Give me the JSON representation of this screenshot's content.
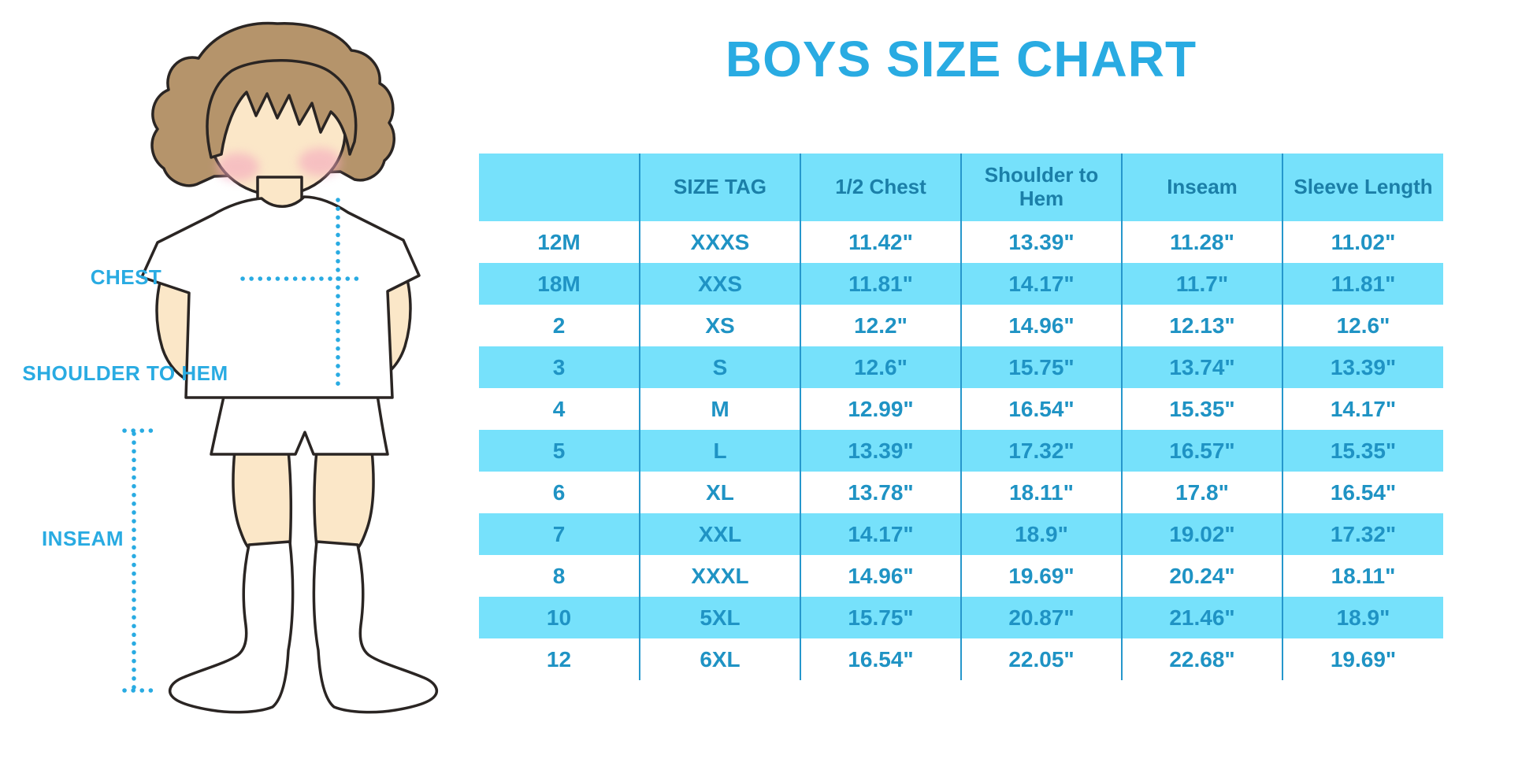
{
  "title": "BOYS SIZE CHART",
  "illustration": {
    "labels": {
      "chest": "CHEST",
      "shoulder_to_hem": "SHOULDER TO HEM",
      "inseam": "INSEAM"
    }
  },
  "chart_data": {
    "type": "table",
    "title": "BOYS SIZE CHART",
    "columns": [
      "",
      "SIZE TAG",
      "1/2 Chest",
      "Shoulder to Hem",
      "Inseam",
      "Sleeve Length"
    ],
    "rows": [
      [
        "12M",
        "XXXS",
        "11.42\"",
        "13.39\"",
        "11.28\"",
        "11.02\""
      ],
      [
        "18M",
        "XXS",
        "11.81\"",
        "14.17\"",
        "11.7\"",
        "11.81\""
      ],
      [
        "2",
        "XS",
        "12.2\"",
        "14.96\"",
        "12.13\"",
        "12.6\""
      ],
      [
        "3",
        "S",
        "12.6\"",
        "15.75\"",
        "13.74\"",
        "13.39\""
      ],
      [
        "4",
        "M",
        "12.99\"",
        "16.54\"",
        "15.35\"",
        "14.17\""
      ],
      [
        "5",
        "L",
        "13.39\"",
        "17.32\"",
        "16.57\"",
        "15.35\""
      ],
      [
        "6",
        "XL",
        "13.78\"",
        "18.11\"",
        "17.8\"",
        "16.54\""
      ],
      [
        "7",
        "XXL",
        "14.17\"",
        "18.9\"",
        "19.02\"",
        "17.32\""
      ],
      [
        "8",
        "XXXL",
        "14.96\"",
        "19.69\"",
        "20.24\"",
        "18.11\""
      ],
      [
        "10",
        "5XL",
        "15.75\"",
        "20.87\"",
        "21.46\"",
        "18.9\""
      ],
      [
        "12",
        "6XL",
        "16.54\"",
        "22.05\"",
        "22.68\"",
        "19.69\""
      ]
    ],
    "row_striping": "alternating white / light cyan, starting white"
  },
  "colors": {
    "accent": "#29ABE2",
    "table_stripe": "#76E1FB",
    "divider": "#2697CC",
    "header_text": "#1B7FA8",
    "cell_text": "#1F93C4",
    "hair": "#B5946B",
    "skin": "#FBE7C8",
    "cheek": "#F4A9BE",
    "outline": "#2A2523"
  }
}
